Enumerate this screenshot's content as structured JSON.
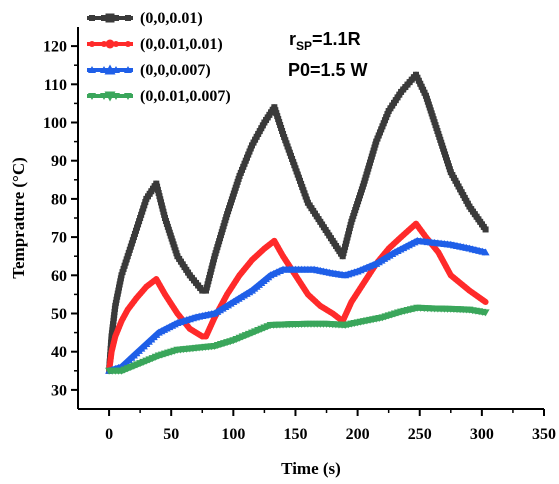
{
  "chart_data": {
    "type": "line",
    "xlabel": "Time (s)",
    "ylabel": "Temprature (°C)",
    "xlim": [
      -25,
      350
    ],
    "ylim": [
      25,
      125
    ],
    "xticks": [
      0,
      50,
      100,
      150,
      200,
      250,
      300,
      350
    ],
    "yticks": [
      30,
      40,
      50,
      60,
      70,
      80,
      90,
      100,
      110,
      120
    ],
    "annotations": {
      "rsp_main": "r",
      "rsp_sub": "SP",
      "rsp_value": "=1.1R",
      "power": "P0=1.5 W"
    },
    "series": [
      {
        "name": "(0,0,0.01)",
        "color": "#3a3a3a",
        "marker": "square",
        "x": [
          0,
          2,
          5,
          10,
          15,
          20,
          25,
          30,
          38,
          45,
          55,
          65,
          75,
          78,
          85,
          95,
          105,
          115,
          125,
          133,
          140,
          150,
          160,
          170,
          180,
          188,
          195,
          205,
          215,
          225,
          235,
          247,
          255,
          265,
          275,
          290,
          303
        ],
        "values": [
          35,
          44,
          52,
          60,
          65,
          70,
          75,
          80,
          84,
          75,
          65,
          60,
          56,
          56,
          65,
          76,
          86,
          94,
          100,
          104,
          97,
          88,
          79,
          74,
          69,
          65,
          74,
          84,
          95,
          103,
          108,
          112.5,
          107,
          97,
          87,
          78,
          72
        ]
      },
      {
        "name": "(0,0.01,0.01)",
        "color": "#ff2a2a",
        "marker": "circle",
        "x": [
          0,
          2,
          5,
          10,
          15,
          22,
          30,
          38,
          45,
          55,
          65,
          75,
          78,
          85,
          95,
          105,
          115,
          125,
          133,
          140,
          150,
          160,
          170,
          180,
          188,
          195,
          205,
          215,
          225,
          235,
          247,
          255,
          265,
          275,
          290,
          303
        ],
        "values": [
          35,
          40,
          44,
          48,
          51,
          54,
          57,
          59,
          55,
          50,
          46,
          44,
          44,
          49,
          55,
          60,
          64,
          67,
          69,
          65,
          60,
          55,
          52,
          50,
          48,
          53,
          58,
          63,
          67,
          70,
          73.5,
          70,
          66,
          60,
          56,
          53
        ]
      },
      {
        "name": "(0,0,0.007)",
        "color": "#1f5fe8",
        "marker": "triangle",
        "x": [
          0,
          10,
          20,
          30,
          40,
          55,
          70,
          85,
          100,
          115,
          130,
          140,
          150,
          165,
          180,
          190,
          200,
          215,
          230,
          248,
          262,
          275,
          290,
          303
        ],
        "values": [
          35,
          36,
          39,
          42,
          45,
          47.5,
          49,
          50,
          53,
          56,
          60,
          61.5,
          61.5,
          61.5,
          60.5,
          60,
          61,
          63,
          66,
          69,
          68.5,
          68,
          67,
          66
        ]
      },
      {
        "name": "(0,0.01,0.007)",
        "color": "#3aa65b",
        "marker": "triangle-down",
        "x": [
          0,
          10,
          25,
          40,
          55,
          70,
          85,
          100,
          115,
          130,
          145,
          160,
          175,
          190,
          205,
          220,
          235,
          248,
          262,
          275,
          290,
          303
        ],
        "values": [
          35,
          35,
          37,
          39,
          40.5,
          41,
          41.5,
          43,
          45,
          47,
          47.2,
          47.3,
          47.3,
          47,
          48,
          49,
          50.5,
          51.5,
          51.3,
          51.2,
          51,
          50.3
        ]
      }
    ]
  }
}
